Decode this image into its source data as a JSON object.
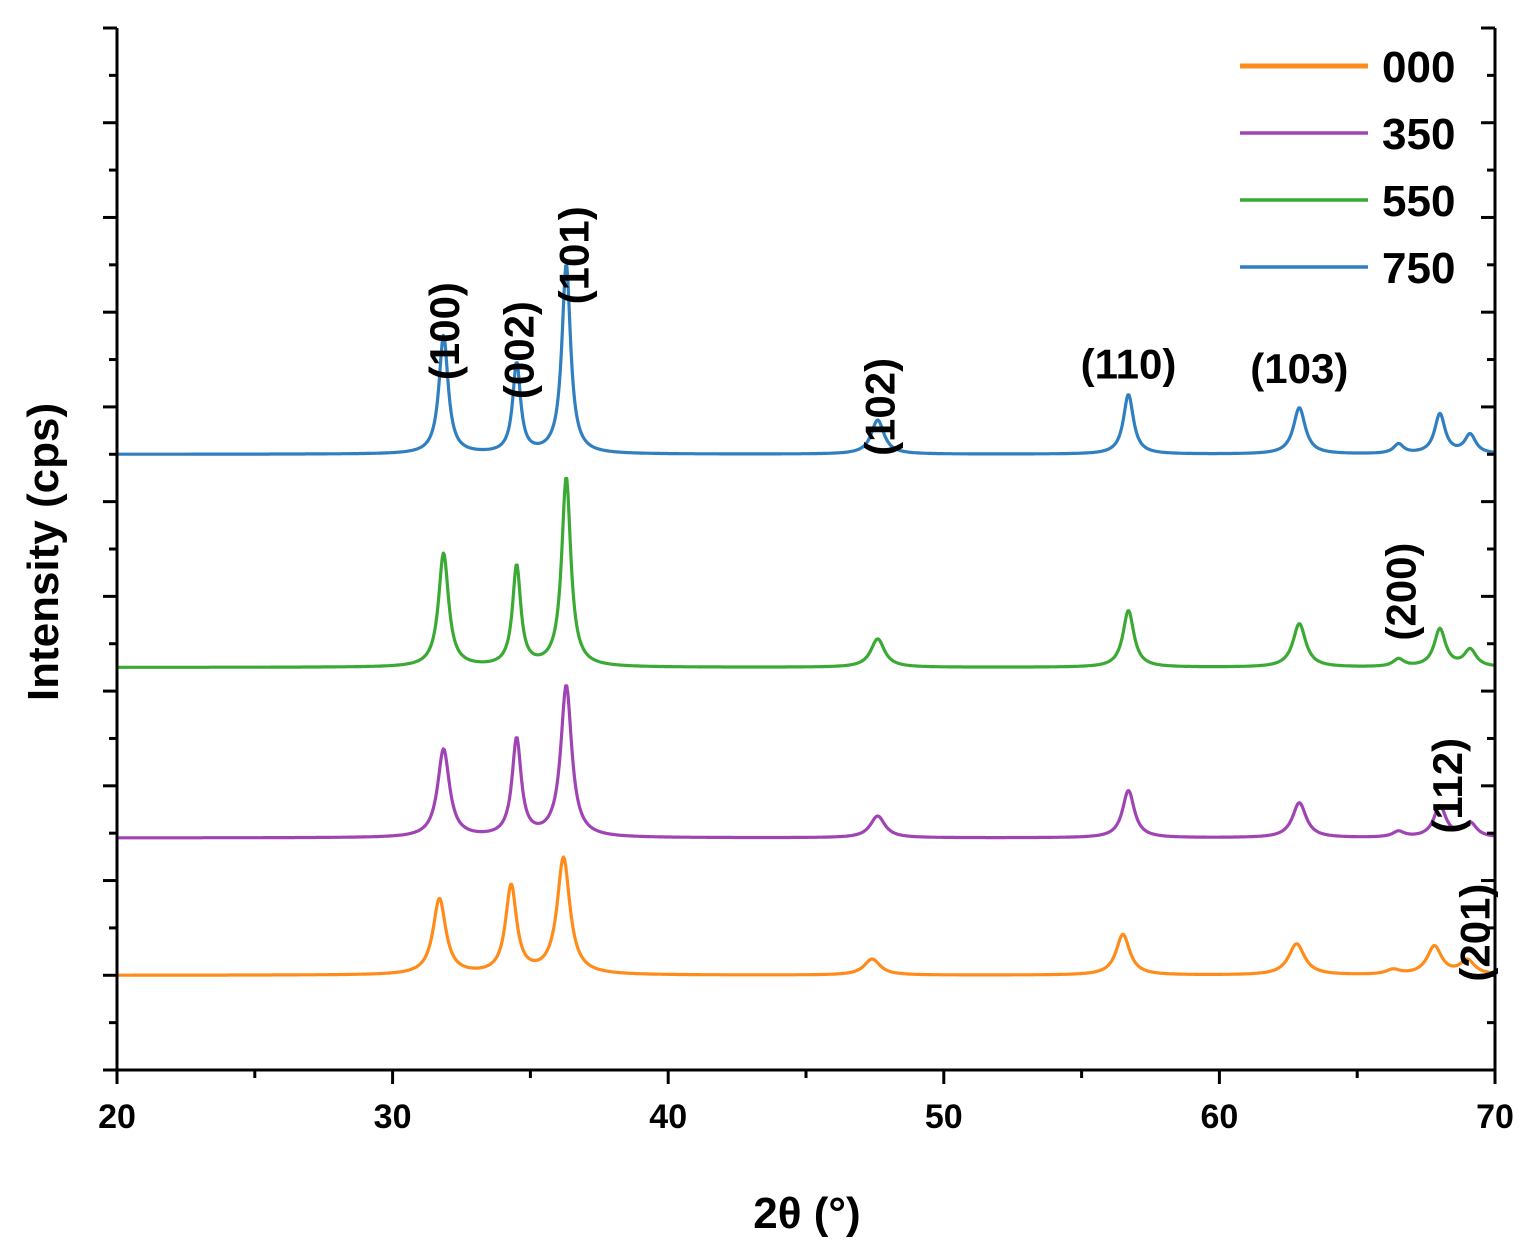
{
  "chart_data": {
    "type": "line",
    "xlabel": "2θ (°)",
    "ylabel": "Intensity (cps)",
    "xlim": [
      20,
      70
    ],
    "ylim": [
      0,
      11
    ],
    "x_ticks": [
      20,
      30,
      40,
      50,
      60,
      70
    ],
    "x_tick_labels": [
      "20",
      "30",
      "40",
      "50",
      "60",
      "70"
    ],
    "y_tick_labels_shown": false,
    "grid": false,
    "legend_position": "top-right",
    "series": [
      {
        "name": "000",
        "color": "#ff8c1a",
        "baseline": 1.0,
        "peaks": [
          {
            "x": 31.7,
            "height": 0.8,
            "width": 0.28
          },
          {
            "x": 34.3,
            "height": 0.93,
            "width": 0.24
          },
          {
            "x": 36.2,
            "height": 1.23,
            "width": 0.28
          },
          {
            "x": 47.4,
            "height": 0.17,
            "width": 0.35
          },
          {
            "x": 56.5,
            "height": 0.43,
            "width": 0.3
          },
          {
            "x": 62.8,
            "height": 0.33,
            "width": 0.35
          },
          {
            "x": 66.3,
            "height": 0.05,
            "width": 0.3
          },
          {
            "x": 67.8,
            "height": 0.3,
            "width": 0.32
          },
          {
            "x": 69.0,
            "height": 0.15,
            "width": 0.32
          }
        ]
      },
      {
        "name": "350",
        "color": "#a044b4",
        "baseline": 2.45,
        "peaks": [
          {
            "x": 31.85,
            "height": 0.93,
            "width": 0.26
          },
          {
            "x": 34.5,
            "height": 1.03,
            "width": 0.2
          },
          {
            "x": 36.3,
            "height": 1.6,
            "width": 0.24
          },
          {
            "x": 47.6,
            "height": 0.23,
            "width": 0.32
          },
          {
            "x": 56.7,
            "height": 0.5,
            "width": 0.26
          },
          {
            "x": 62.9,
            "height": 0.37,
            "width": 0.3
          },
          {
            "x": 66.5,
            "height": 0.06,
            "width": 0.26
          },
          {
            "x": 68.0,
            "height": 0.33,
            "width": 0.27
          },
          {
            "x": 69.1,
            "height": 0.15,
            "width": 0.28
          }
        ]
      },
      {
        "name": "550",
        "color": "#3aaa35",
        "baseline": 4.25,
        "peaks": [
          {
            "x": 31.85,
            "height": 1.2,
            "width": 0.22
          },
          {
            "x": 34.5,
            "height": 1.06,
            "width": 0.18
          },
          {
            "x": 36.3,
            "height": 2.0,
            "width": 0.2
          },
          {
            "x": 47.6,
            "height": 0.3,
            "width": 0.3
          },
          {
            "x": 56.7,
            "height": 0.6,
            "width": 0.24
          },
          {
            "x": 62.9,
            "height": 0.46,
            "width": 0.28
          },
          {
            "x": 66.5,
            "height": 0.08,
            "width": 0.24
          },
          {
            "x": 68.0,
            "height": 0.4,
            "width": 0.25
          },
          {
            "x": 69.1,
            "height": 0.18,
            "width": 0.26
          }
        ]
      },
      {
        "name": "750",
        "color": "#2f7fc1",
        "baseline": 6.5,
        "peaks": [
          {
            "x": 31.85,
            "height": 1.25,
            "width": 0.2
          },
          {
            "x": 34.5,
            "height": 0.95,
            "width": 0.17
          },
          {
            "x": 36.3,
            "height": 2.0,
            "width": 0.19
          },
          {
            "x": 47.6,
            "height": 0.36,
            "width": 0.28
          },
          {
            "x": 56.7,
            "height": 0.63,
            "width": 0.22
          },
          {
            "x": 62.9,
            "height": 0.49,
            "width": 0.26
          },
          {
            "x": 66.5,
            "height": 0.1,
            "width": 0.22
          },
          {
            "x": 68.0,
            "height": 0.42,
            "width": 0.23
          },
          {
            "x": 69.1,
            "height": 0.2,
            "width": 0.24
          }
        ]
      }
    ],
    "annotations": [
      {
        "text": "(100)",
        "x": 31.9,
        "y": 7.8,
        "rotation": -90
      },
      {
        "text": "(002)",
        "x": 34.6,
        "y": 7.6,
        "rotation": -90
      },
      {
        "text": "(101)",
        "x": 36.6,
        "y": 8.6,
        "rotation": -90
      },
      {
        "text": "(102)",
        "x": 47.7,
        "y": 7.0,
        "rotation": -90
      },
      {
        "text": "(110)",
        "x": 56.7,
        "y": 7.3,
        "rotation": 0
      },
      {
        "text": "(103)",
        "x": 62.9,
        "y": 7.25,
        "rotation": 0
      },
      {
        "text": "(200)",
        "x": 66.6,
        "y": 5.05,
        "rotation": -90
      },
      {
        "text": "(112)",
        "x": 68.3,
        "y": 3.0,
        "rotation": -90
      },
      {
        "text": "(201)",
        "x": 69.3,
        "y": 1.45,
        "rotation": -90
      }
    ]
  }
}
